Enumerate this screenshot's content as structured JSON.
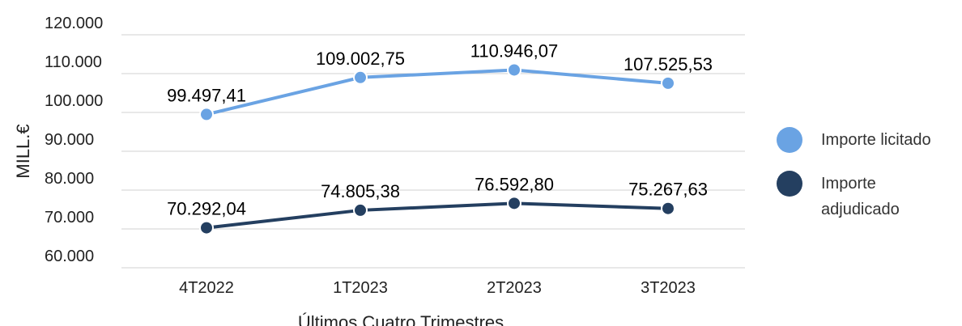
{
  "chart_data": {
    "type": "line",
    "categories": [
      "4T2022",
      "1T2023",
      "2T2023",
      "3T2023"
    ],
    "series": [
      {
        "name": "Importe licitado",
        "color": "#6aa3e3",
        "values": [
          99497.41,
          109002.75,
          110946.07,
          107525.53
        ],
        "value_labels": [
          "99.497,41",
          "109.002,75",
          "110.946,07",
          "107.525,53"
        ]
      },
      {
        "name": "Importe adjudicado",
        "color": "#243f60",
        "values": [
          70292.04,
          74805.38,
          76592.8,
          75267.63
        ],
        "value_labels": [
          "70.292,04",
          "74.805,38",
          "76.592,80",
          "75.267,63"
        ]
      }
    ],
    "ylim": [
      60000,
      120000
    ],
    "yticks": [
      {
        "value": 60000,
        "label": "60.000"
      },
      {
        "value": 70000,
        "label": "70.000"
      },
      {
        "value": 80000,
        "label": "80.000"
      },
      {
        "value": 90000,
        "label": "90.000"
      },
      {
        "value": 100000,
        "label": "100.000"
      },
      {
        "value": 110000,
        "label": "110.000"
      },
      {
        "value": 120000,
        "label": "120.000"
      }
    ],
    "y_label": "MILL.€",
    "x_label": "Últimos Cuatro Trimestres",
    "grid": true,
    "legend": "right"
  }
}
